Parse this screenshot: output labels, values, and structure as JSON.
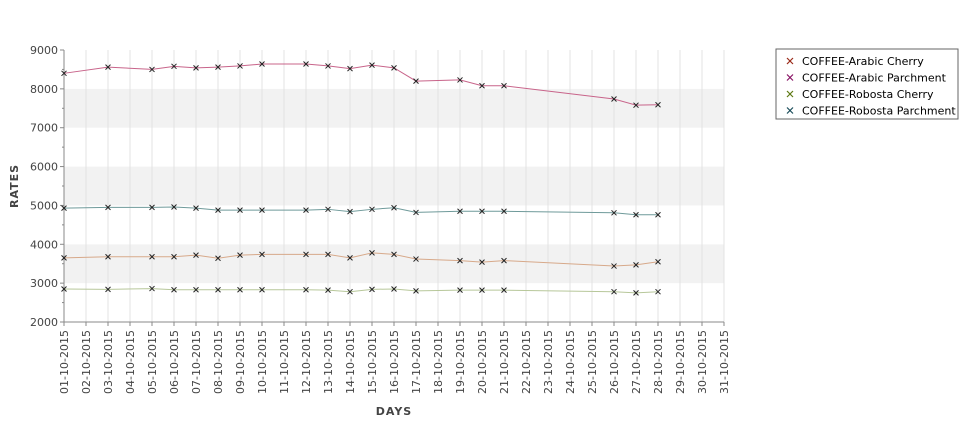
{
  "chart_data": {
    "type": "line",
    "xlabel": "DAYS",
    "ylabel": "RATES",
    "ylim": [
      2000,
      9000
    ],
    "yticks": [
      2000,
      3000,
      4000,
      5000,
      6000,
      7000,
      8000,
      9000
    ],
    "categories": [
      "01-10-2015",
      "02-10-2015",
      "03-10-2015",
      "04-10-2015",
      "05-10-2015",
      "06-10-2015",
      "07-10-2015",
      "08-10-2015",
      "09-10-2015",
      "10-10-2015",
      "11-10-2015",
      "12-10-2015",
      "13-10-2015",
      "14-10-2015",
      "15-10-2015",
      "16-10-2015",
      "17-10-2015",
      "18-10-2015",
      "19-10-2015",
      "20-10-2015",
      "21-10-2015",
      "22-10-2015",
      "23-10-2015",
      "24-10-2015",
      "25-10-2015",
      "26-10-2015",
      "27-10-2015",
      "28-10-2015",
      "29-10-2015",
      "30-10-2015",
      "31-10-2015"
    ],
    "grid": true,
    "legend_position": "right",
    "series": [
      {
        "name": "COFFEE-Arabic Cherry",
        "color": "#9b2b1a",
        "line_color": "#d7a98a",
        "points": [
          [
            1,
            3650
          ],
          [
            3,
            3680
          ],
          [
            5,
            3680
          ],
          [
            6,
            3680
          ],
          [
            7,
            3720
          ],
          [
            8,
            3640
          ],
          [
            9,
            3720
          ],
          [
            10,
            3740
          ],
          [
            12,
            3740
          ],
          [
            13,
            3740
          ],
          [
            14,
            3650
          ],
          [
            15,
            3780
          ],
          [
            16,
            3740
          ],
          [
            17,
            3620
          ],
          [
            19,
            3580
          ],
          [
            20,
            3540
          ],
          [
            21,
            3580
          ],
          [
            26,
            3440
          ],
          [
            27,
            3470
          ],
          [
            28,
            3550
          ]
        ]
      },
      {
        "name": "COFFEE-Arabic Parchment",
        "color": "#8a1566",
        "line_color": "#c8648a",
        "points": [
          [
            1,
            8400
          ],
          [
            3,
            8560
          ],
          [
            5,
            8500
          ],
          [
            6,
            8580
          ],
          [
            7,
            8540
          ],
          [
            8,
            8560
          ],
          [
            9,
            8590
          ],
          [
            10,
            8640
          ],
          [
            12,
            8640
          ],
          [
            13,
            8590
          ],
          [
            14,
            8520
          ],
          [
            15,
            8610
          ],
          [
            16,
            8540
          ],
          [
            17,
            8200
          ],
          [
            19,
            8230
          ],
          [
            20,
            8080
          ],
          [
            21,
            8080
          ],
          [
            26,
            7740
          ],
          [
            27,
            7580
          ],
          [
            28,
            7590
          ]
        ]
      },
      {
        "name": "COFFEE-Robosta Cherry",
        "color": "#5f7a14",
        "line_color": "#b7c79a",
        "points": [
          [
            1,
            2850
          ],
          [
            3,
            2840
          ],
          [
            5,
            2860
          ],
          [
            6,
            2830
          ],
          [
            7,
            2830
          ],
          [
            8,
            2830
          ],
          [
            9,
            2830
          ],
          [
            10,
            2830
          ],
          [
            12,
            2830
          ],
          [
            13,
            2820
          ],
          [
            14,
            2780
          ],
          [
            15,
            2840
          ],
          [
            16,
            2850
          ],
          [
            17,
            2800
          ],
          [
            19,
            2820
          ],
          [
            20,
            2820
          ],
          [
            21,
            2820
          ],
          [
            26,
            2780
          ],
          [
            27,
            2750
          ],
          [
            28,
            2780
          ]
        ]
      },
      {
        "name": "COFFEE-Robosta Parchment",
        "color": "#1a4e5a",
        "line_color": "#6f9a9a",
        "points": [
          [
            1,
            4930
          ],
          [
            3,
            4950
          ],
          [
            5,
            4950
          ],
          [
            6,
            4960
          ],
          [
            7,
            4930
          ],
          [
            8,
            4880
          ],
          [
            9,
            4880
          ],
          [
            10,
            4880
          ],
          [
            12,
            4880
          ],
          [
            13,
            4900
          ],
          [
            14,
            4840
          ],
          [
            15,
            4900
          ],
          [
            16,
            4940
          ],
          [
            17,
            4820
          ],
          [
            19,
            4850
          ],
          [
            20,
            4850
          ],
          [
            21,
            4850
          ],
          [
            26,
            4810
          ],
          [
            27,
            4760
          ],
          [
            28,
            4760
          ]
        ]
      }
    ]
  }
}
